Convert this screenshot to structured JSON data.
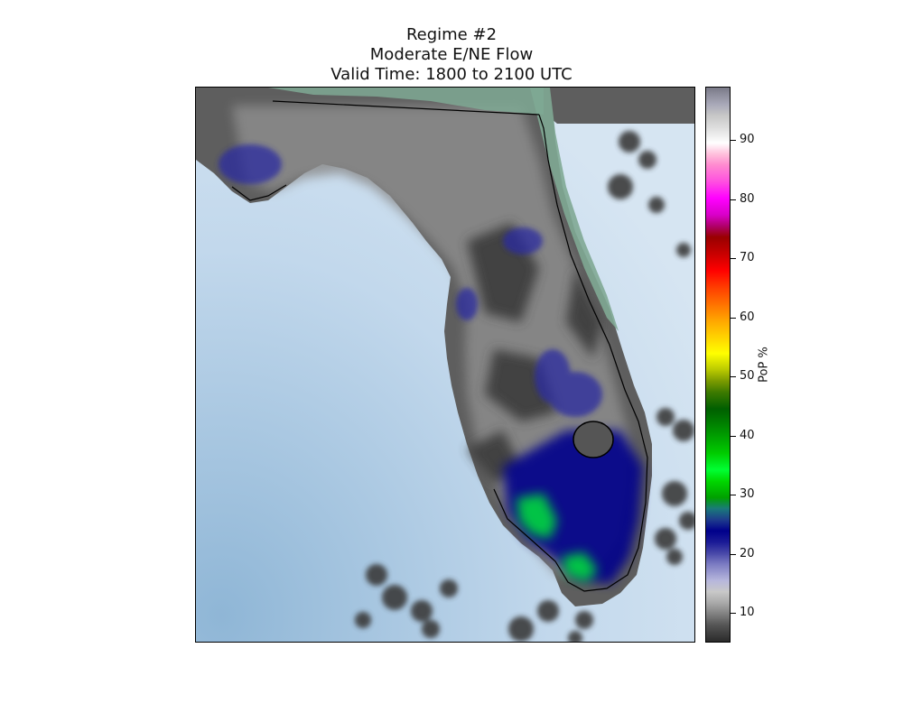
{
  "title": {
    "line1": "Regime #2",
    "line2": "Moderate E/NE Flow",
    "line3": "Valid Time: 1800 to 2100 UTC"
  },
  "colorbar": {
    "label": "PoP %",
    "ticks": [
      "10",
      "20",
      "30",
      "40",
      "50",
      "60",
      "70",
      "80",
      "90"
    ]
  },
  "colors": {
    "ocean": "#b9d4ea",
    "land_low": "#3a3a3a",
    "land_mid": "#8c8c8c",
    "pop_blue": "#1a1a96",
    "pop_green": "#00ff33"
  }
}
